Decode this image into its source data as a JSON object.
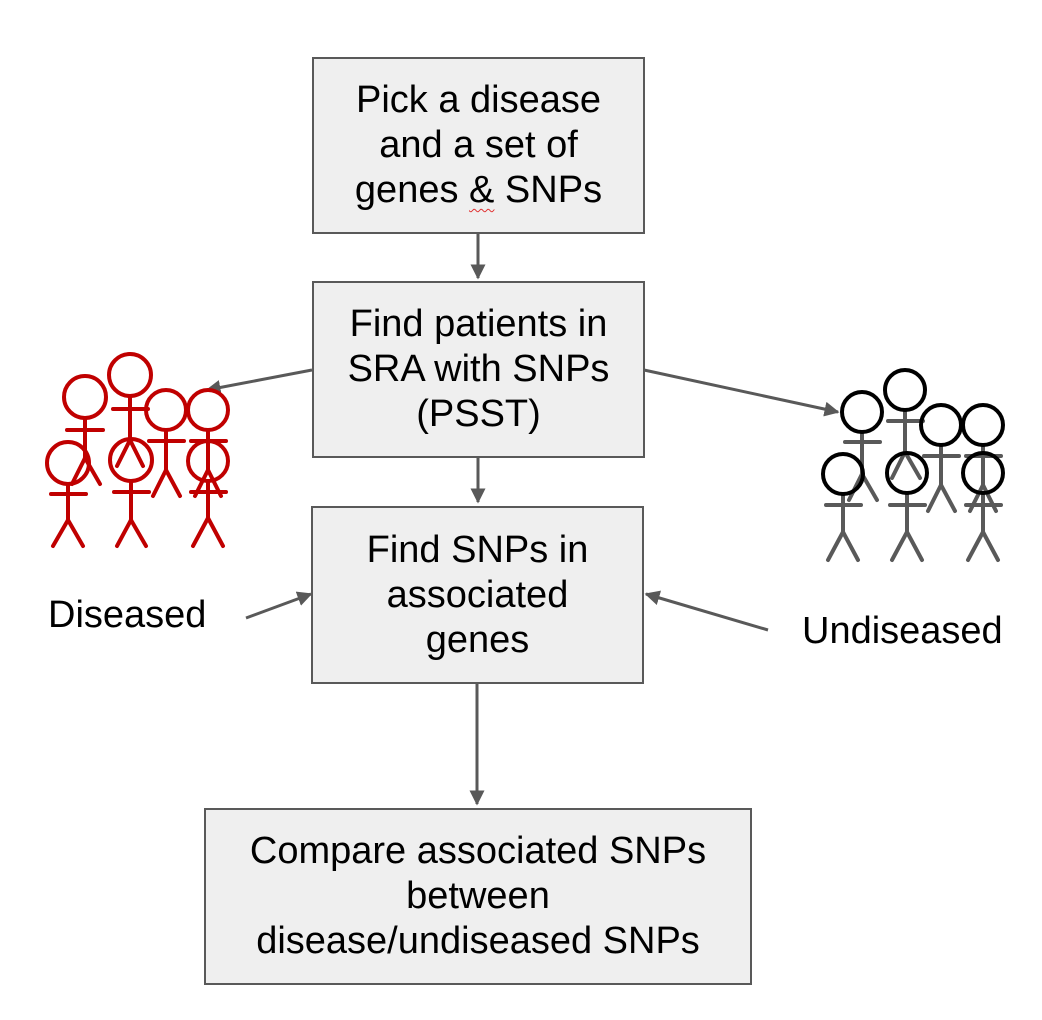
{
  "boxes": {
    "pick": {
      "line1": "Pick a disease",
      "line2": "and a set of",
      "line3_before": "genes ",
      "line3_mark": "&",
      "line3_after": " SNPs"
    },
    "find_patients": {
      "line1": "Find patients in",
      "line2": "SRA with SNPs",
      "line3": "(PSST)"
    },
    "find_snps": {
      "line1": "Find SNPs in",
      "line2": "associated",
      "line3": "genes"
    },
    "compare": {
      "line1": "Compare associated SNPs",
      "line2": "between",
      "line3": "disease/undiseased SNPs"
    }
  },
  "groups": {
    "diseased": {
      "label": "Diseased",
      "figure_count": 7,
      "color": "#c00000"
    },
    "undiseased": {
      "label": "Undiseased",
      "figure_count": 7,
      "color_head": "#000000",
      "color_body": "#595959"
    }
  },
  "colors": {
    "box_fill": "#efefef",
    "box_border": "#595959",
    "arrow": "#595959",
    "spellcheck_underline": "#e03030"
  }
}
